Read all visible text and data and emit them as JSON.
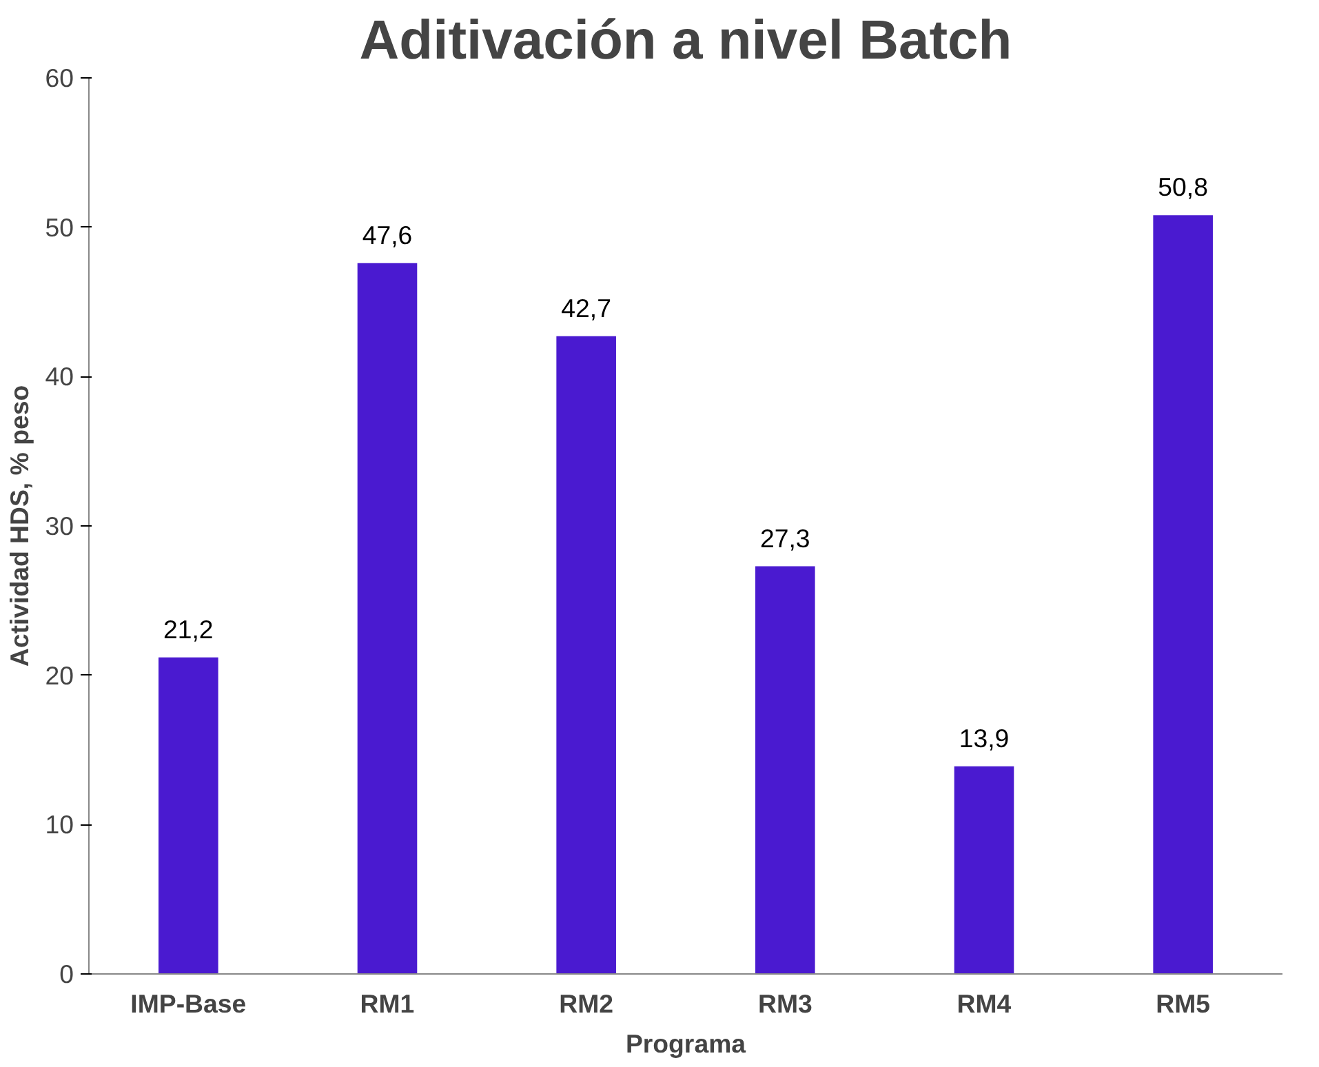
{
  "chart_data": {
    "type": "bar",
    "title": "Aditivación a nivel Batch",
    "xlabel": "Programa",
    "ylabel": "Actividad HDS, % peso",
    "categories": [
      "IMP-Base",
      "RM1",
      "RM2",
      "RM3",
      "RM4",
      "RM5"
    ],
    "values": [
      21.2,
      47.6,
      42.7,
      27.3,
      13.9,
      50.8
    ],
    "value_labels": [
      "21,2",
      "47,6",
      "42,7",
      "27,3",
      "13,9",
      "50,8"
    ],
    "color": "#4a1ad0",
    "ylim": [
      0,
      60
    ],
    "yticks": [
      0,
      10,
      20,
      30,
      40,
      50,
      60
    ],
    "grid": false
  }
}
